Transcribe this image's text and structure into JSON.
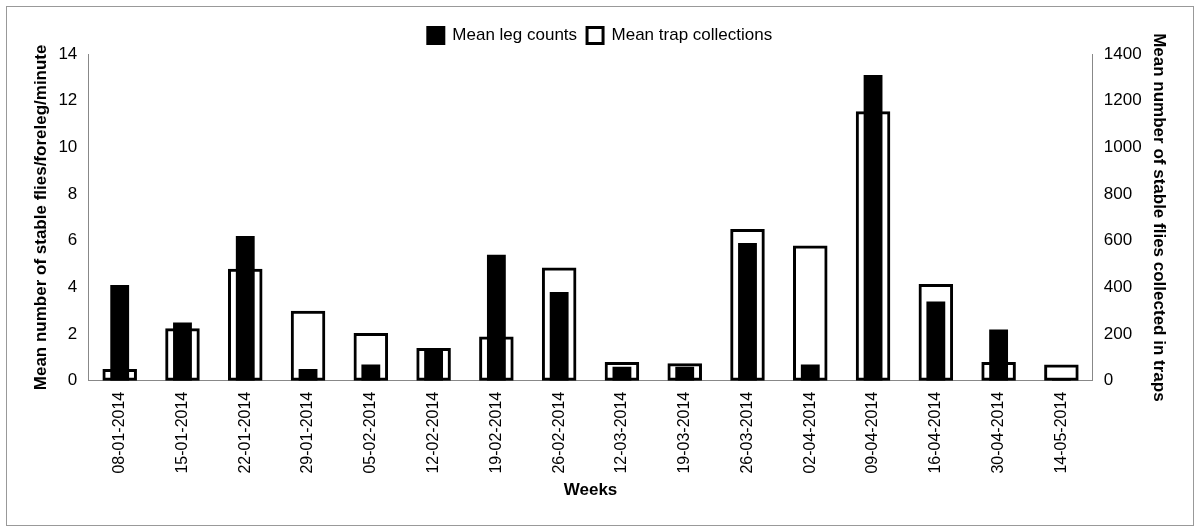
{
  "chart_data": {
    "type": "bar",
    "categories": [
      "08-01-2014",
      "15-01-2014",
      "22-01-2014",
      "29-01-2014",
      "05-02-2014",
      "12-02-2014",
      "19-02-2014",
      "26-02-2014",
      "12-03-2014",
      "19-03-2014",
      "26-03-2014",
      "02-04-2014",
      "09-04-2014",
      "16-04-2014",
      "30-04-2014",
      "14-05-2014"
    ],
    "series": [
      {
        "name": "Mean leg counts",
        "color": "#000000",
        "values": [
          4.1,
          2.5,
          6.2,
          0.5,
          0.7,
          1.3,
          5.4,
          3.8,
          0.6,
          0.6,
          5.9,
          0.7,
          13.1,
          3.4,
          2.2,
          0.1
        ]
      },
      {
        "name": "Mean trap collections",
        "color": "#000000",
        "axis": "y2",
        "values": [
          50,
          225,
          480,
          300,
          205,
          140,
          190,
          485,
          80,
          75,
          650,
          580,
          1155,
          415,
          80,
          70
        ]
      }
    ],
    "xlabel": "Weeks",
    "ylabel": "Mean number of stable flies/foreleg/minute",
    "y2label": "Mean number of stable flies collected in traps",
    "ylim": [
      0,
      14
    ],
    "yticks": [
      0,
      2,
      4,
      6,
      8,
      10,
      12,
      14
    ],
    "y2lim": [
      0,
      1400
    ],
    "y2ticks": [
      0,
      200,
      400,
      600,
      800,
      1000,
      1200,
      1400
    ],
    "grid": false,
    "legend": "top"
  }
}
